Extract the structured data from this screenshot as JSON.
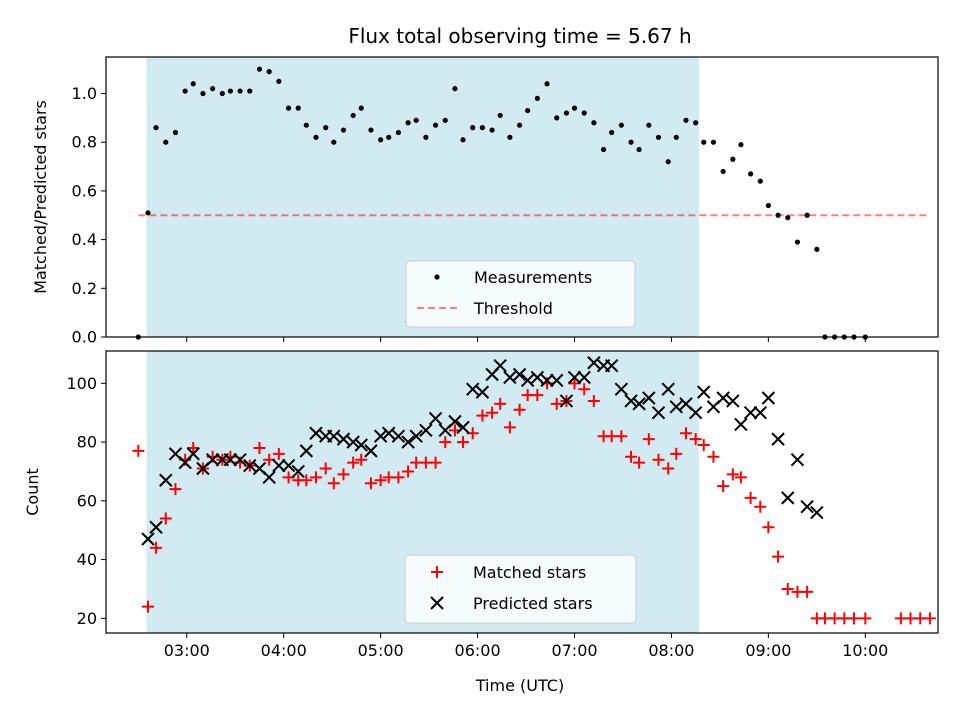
{
  "title": "Flux total observing time = 5.67 h",
  "colors": {
    "shade": "#add8e6",
    "threshold": "#ff0000",
    "measurement": "#000000",
    "matched": "#ff0000",
    "predicted": "#000000"
  },
  "shade_range": [
    "02:35",
    "08:17"
  ],
  "xlabel": "Time (UTC)",
  "xrange": [
    "02:10",
    "10:45"
  ],
  "xticks": [
    "03:00",
    "04:00",
    "05:00",
    "06:00",
    "07:00",
    "08:00",
    "09:00",
    "10:00"
  ],
  "chart_data": [
    {
      "type": "scatter",
      "ylabel": "Matched/Predicted stars",
      "ylim": [
        0,
        1.15
      ],
      "yticks": [
        "0.0",
        "0.2",
        "0.4",
        "0.6",
        "0.8",
        "1.0"
      ],
      "threshold": 0.5,
      "legend": {
        "placement": "lower-center",
        "entries": [
          "Measurements",
          "Threshold"
        ]
      },
      "series": [
        {
          "name": "Measurements",
          "points": [
            [
              "02:30",
              0.0
            ],
            [
              "02:36",
              0.51
            ],
            [
              "02:41",
              0.86
            ],
            [
              "02:47",
              0.8
            ],
            [
              "02:53",
              0.84
            ],
            [
              "02:59",
              1.01
            ],
            [
              "03:04",
              1.04
            ],
            [
              "03:10",
              1.0
            ],
            [
              "03:16",
              1.02
            ],
            [
              "03:22",
              1.0
            ],
            [
              "03:27",
              1.01
            ],
            [
              "03:33",
              1.01
            ],
            [
              "03:39",
              1.01
            ],
            [
              "03:45",
              1.1
            ],
            [
              "03:51",
              1.09
            ],
            [
              "03:57",
              1.05
            ],
            [
              "04:03",
              0.94
            ],
            [
              "04:09",
              0.94
            ],
            [
              "04:14",
              0.87
            ],
            [
              "04:20",
              0.82
            ],
            [
              "04:26",
              0.86
            ],
            [
              "04:31",
              0.8
            ],
            [
              "04:37",
              0.85
            ],
            [
              "04:43",
              0.91
            ],
            [
              "04:48",
              0.94
            ],
            [
              "04:54",
              0.85
            ],
            [
              "05:00",
              0.81
            ],
            [
              "05:05",
              0.82
            ],
            [
              "05:11",
              0.84
            ],
            [
              "05:17",
              0.88
            ],
            [
              "05:22",
              0.89
            ],
            [
              "05:28",
              0.82
            ],
            [
              "05:34",
              0.87
            ],
            [
              "05:40",
              0.89
            ],
            [
              "05:46",
              1.02
            ],
            [
              "05:51",
              0.81
            ],
            [
              "05:57",
              0.86
            ],
            [
              "06:03",
              0.86
            ],
            [
              "06:09",
              0.85
            ],
            [
              "06:14",
              0.91
            ],
            [
              "06:20",
              0.82
            ],
            [
              "06:26",
              0.87
            ],
            [
              "06:31",
              0.93
            ],
            [
              "06:37",
              0.98
            ],
            [
              "06:43",
              1.04
            ],
            [
              "06:49",
              0.9
            ],
            [
              "06:55",
              0.92
            ],
            [
              "07:00",
              0.94
            ],
            [
              "07:06",
              0.92
            ],
            [
              "07:12",
              0.88
            ],
            [
              "07:18",
              0.77
            ],
            [
              "07:23",
              0.84
            ],
            [
              "07:29",
              0.87
            ],
            [
              "07:35",
              0.8
            ],
            [
              "07:40",
              0.77
            ],
            [
              "07:46",
              0.87
            ],
            [
              "07:52",
              0.82
            ],
            [
              "07:58",
              0.72
            ],
            [
              "08:03",
              0.82
            ],
            [
              "08:09",
              0.89
            ],
            [
              "08:15",
              0.88
            ],
            [
              "08:20",
              0.8
            ],
            [
              "08:26",
              0.8
            ],
            [
              "08:32",
              0.68
            ],
            [
              "08:38",
              0.73
            ],
            [
              "08:43",
              0.79
            ],
            [
              "08:49",
              0.67
            ],
            [
              "08:55",
              0.64
            ],
            [
              "09:00",
              0.54
            ],
            [
              "09:06",
              0.5
            ],
            [
              "09:12",
              0.49
            ],
            [
              "09:18",
              0.39
            ],
            [
              "09:24",
              0.5
            ],
            [
              "09:30",
              0.36
            ],
            [
              "09:35",
              0.0
            ],
            [
              "09:41",
              0.0
            ],
            [
              "09:47",
              0.0
            ],
            [
              "09:53",
              0.0
            ],
            [
              "10:00",
              0.0
            ]
          ]
        }
      ]
    },
    {
      "type": "scatter",
      "ylabel": "Count",
      "ylim": [
        15,
        111
      ],
      "yticks": [
        "20",
        "40",
        "60",
        "80",
        "100"
      ],
      "legend": {
        "placement": "lower-center",
        "entries": [
          "Matched stars",
          "Predicted stars"
        ]
      },
      "series": [
        {
          "name": "Matched stars",
          "points": [
            [
              "02:30",
              77
            ],
            [
              "02:36",
              24
            ],
            [
              "02:41",
              44
            ],
            [
              "02:47",
              54
            ],
            [
              "02:53",
              64
            ],
            [
              "02:59",
              74
            ],
            [
              "03:04",
              78
            ],
            [
              "03:10",
              71
            ],
            [
              "03:16",
              75
            ],
            [
              "03:22",
              74
            ],
            [
              "03:27",
              75
            ],
            [
              "03:33",
              73
            ],
            [
              "03:39",
              72
            ],
            [
              "03:45",
              78
            ],
            [
              "03:51",
              74
            ],
            [
              "03:57",
              76
            ],
            [
              "04:03",
              68
            ],
            [
              "04:09",
              67
            ],
            [
              "04:14",
              67
            ],
            [
              "04:20",
              68
            ],
            [
              "04:26",
              71
            ],
            [
              "04:31",
              66
            ],
            [
              "04:37",
              69
            ],
            [
              "04:43",
              73
            ],
            [
              "04:48",
              74
            ],
            [
              "04:54",
              66
            ],
            [
              "05:00",
              67
            ],
            [
              "05:05",
              68
            ],
            [
              "05:11",
              68
            ],
            [
              "05:17",
              70
            ],
            [
              "05:22",
              73
            ],
            [
              "05:28",
              73
            ],
            [
              "05:34",
              73
            ],
            [
              "05:40",
              80
            ],
            [
              "05:46",
              84
            ],
            [
              "05:51",
              80
            ],
            [
              "05:57",
              83
            ],
            [
              "06:03",
              89
            ],
            [
              "06:09",
              90
            ],
            [
              "06:14",
              93
            ],
            [
              "06:20",
              85
            ],
            [
              "06:26",
              91
            ],
            [
              "06:31",
              96
            ],
            [
              "06:37",
              96
            ],
            [
              "06:43",
              100
            ],
            [
              "06:49",
              93
            ],
            [
              "06:55",
              94
            ],
            [
              "07:00",
              100
            ],
            [
              "07:06",
              98
            ],
            [
              "07:12",
              94
            ],
            [
              "07:18",
              82
            ],
            [
              "07:23",
              82
            ],
            [
              "07:29",
              82
            ],
            [
              "07:35",
              75
            ],
            [
              "07:40",
              73
            ],
            [
              "07:46",
              81
            ],
            [
              "07:52",
              74
            ],
            [
              "07:58",
              71
            ],
            [
              "08:03",
              76
            ],
            [
              "08:09",
              83
            ],
            [
              "08:15",
              81
            ],
            [
              "08:20",
              79
            ],
            [
              "08:26",
              75
            ],
            [
              "08:32",
              65
            ],
            [
              "08:38",
              69
            ],
            [
              "08:43",
              68
            ],
            [
              "08:49",
              61
            ],
            [
              "08:55",
              58
            ],
            [
              "09:00",
              51
            ],
            [
              "09:06",
              41
            ],
            [
              "09:12",
              30
            ],
            [
              "09:18",
              29
            ],
            [
              "09:24",
              29
            ],
            [
              "09:30",
              20
            ],
            [
              "09:35",
              20
            ],
            [
              "09:41",
              20
            ],
            [
              "09:47",
              20
            ],
            [
              "09:53",
              20
            ],
            [
              "10:00",
              20
            ],
            [
              "10:22",
              20
            ],
            [
              "10:28",
              20
            ],
            [
              "10:34",
              20
            ],
            [
              "10:40",
              20
            ]
          ]
        },
        {
          "name": "Predicted stars",
          "points": [
            [
              "02:36",
              47
            ],
            [
              "02:41",
              51
            ],
            [
              "02:47",
              67
            ],
            [
              "02:53",
              76
            ],
            [
              "02:59",
              73
            ],
            [
              "03:04",
              76
            ],
            [
              "03:10",
              71
            ],
            [
              "03:16",
              74
            ],
            [
              "03:22",
              74
            ],
            [
              "03:27",
              74
            ],
            [
              "03:33",
              74
            ],
            [
              "03:39",
              72
            ],
            [
              "03:45",
              71
            ],
            [
              "03:51",
              68
            ],
            [
              "03:57",
              72
            ],
            [
              "04:03",
              72
            ],
            [
              "04:09",
              70
            ],
            [
              "04:14",
              77
            ],
            [
              "04:20",
              83
            ],
            [
              "04:26",
              82
            ],
            [
              "04:31",
              82
            ],
            [
              "04:37",
              81
            ],
            [
              "04:43",
              80
            ],
            [
              "04:48",
              79
            ],
            [
              "04:54",
              77
            ],
            [
              "05:00",
              82
            ],
            [
              "05:05",
              83
            ],
            [
              "05:11",
              82
            ],
            [
              "05:17",
              80
            ],
            [
              "05:22",
              82
            ],
            [
              "05:28",
              84
            ],
            [
              "05:34",
              88
            ],
            [
              "05:40",
              84
            ],
            [
              "05:46",
              87
            ],
            [
              "05:51",
              85
            ],
            [
              "05:57",
              98
            ],
            [
              "06:03",
              97
            ],
            [
              "06:09",
              103
            ],
            [
              "06:14",
              106
            ],
            [
              "06:20",
              102
            ],
            [
              "06:26",
              103
            ],
            [
              "06:31",
              101
            ],
            [
              "06:37",
              102
            ],
            [
              "06:43",
              101
            ],
            [
              "06:49",
              101
            ],
            [
              "06:55",
              94
            ],
            [
              "07:00",
              102
            ],
            [
              "07:06",
              102
            ],
            [
              "07:12",
              107
            ],
            [
              "07:18",
              106
            ],
            [
              "07:23",
              106
            ],
            [
              "07:29",
              98
            ],
            [
              "07:35",
              94
            ],
            [
              "07:40",
              93
            ],
            [
              "07:46",
              95
            ],
            [
              "07:52",
              90
            ],
            [
              "07:58",
              98
            ],
            [
              "08:03",
              92
            ],
            [
              "08:09",
              93
            ],
            [
              "08:15",
              90
            ],
            [
              "08:20",
              97
            ],
            [
              "08:26",
              92
            ],
            [
              "08:32",
              95
            ],
            [
              "08:38",
              94
            ],
            [
              "08:43",
              86
            ],
            [
              "08:49",
              90
            ],
            [
              "08:55",
              90
            ],
            [
              "09:00",
              95
            ],
            [
              "09:06",
              81
            ],
            [
              "09:12",
              61
            ],
            [
              "09:18",
              74
            ],
            [
              "09:24",
              58
            ],
            [
              "09:30",
              56
            ]
          ]
        }
      ]
    }
  ]
}
